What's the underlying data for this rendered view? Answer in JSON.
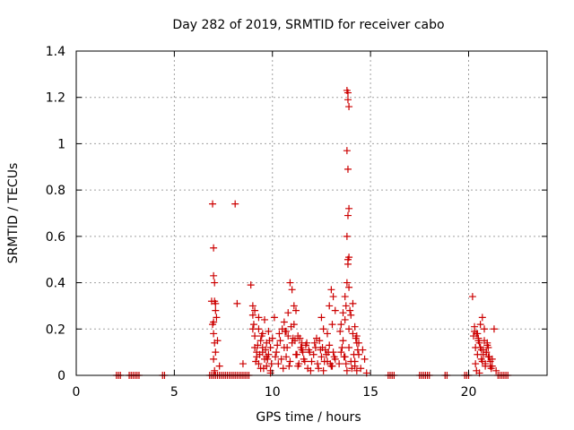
{
  "chart_data": {
    "type": "scatter",
    "title": "Day 282 of 2019, SRMTID for receiver cabo",
    "xlabel": "GPS time / hours",
    "ylabel": "SRMTID / TECUs",
    "xlim": [
      0,
      24
    ],
    "ylim": [
      0,
      1.4
    ],
    "xticks": [
      0,
      5,
      10,
      15,
      20
    ],
    "xtick_labels": [
      "0",
      "5",
      "10",
      "15",
      "20"
    ],
    "yticks": [
      0,
      0.2,
      0.4,
      0.6,
      0.8,
      1.0,
      1.2,
      1.4
    ],
    "ytick_labels": [
      "0",
      "0.2",
      "0.4",
      "0.6",
      "0.8",
      "1",
      "1.2",
      "1.4"
    ],
    "grid": true,
    "marker": "plus",
    "color": "#cc0000",
    "series": [
      {
        "name": "SRMTID",
        "x": [
          2.05,
          2.15,
          2.25,
          2.7,
          2.8,
          2.9,
          3.0,
          3.1,
          3.2,
          4.4,
          4.5,
          6.8,
          6.9,
          7.0,
          7.1,
          7.2,
          7.3,
          7.4,
          7.5,
          7.6,
          7.7,
          7.8,
          7.9,
          8.0,
          8.1,
          8.2,
          8.3,
          8.4,
          8.5,
          8.6,
          8.7,
          8.8,
          6.95,
          7.0,
          7.0,
          7.05,
          7.05,
          7.1,
          7.1,
          7.15,
          6.95,
          7.0,
          7.05,
          7.1,
          7.2,
          7.3,
          7.0,
          7.05,
          6.9,
          7.0,
          8.1,
          8.2,
          8.5,
          8.9,
          9.0,
          9.0,
          9.0,
          9.1,
          9.1,
          9.2,
          9.2,
          9.3,
          9.3,
          9.4,
          9.4,
          9.5,
          9.5,
          9.6,
          9.6,
          9.7,
          9.7,
          9.8,
          9.8,
          9.9,
          9.9,
          10.0,
          9.05,
          9.15,
          9.25,
          9.35,
          9.45,
          9.55,
          9.65,
          9.75,
          9.85,
          9.95,
          9.1,
          9.3,
          9.5,
          9.7,
          9.9,
          10.1,
          10.2,
          10.3,
          10.4,
          10.5,
          10.6,
          10.7,
          10.8,
          10.9,
          11.0,
          11.1,
          11.2,
          11.3,
          11.4,
          11.5,
          11.6,
          11.7,
          11.8,
          11.9,
          12.0,
          10.15,
          10.35,
          10.55,
          10.75,
          10.95,
          11.15,
          11.35,
          11.55,
          11.75,
          11.95,
          10.25,
          10.45,
          10.65,
          10.85,
          11.05,
          11.25,
          11.45,
          11.65,
          11.85,
          10.9,
          11.0,
          11.1,
          11.2,
          10.6,
          10.7,
          10.8,
          11.3,
          11.5,
          12.1,
          12.2,
          12.3,
          12.4,
          12.5,
          12.6,
          12.7,
          12.8,
          12.9,
          13.0,
          13.1,
          13.2,
          12.15,
          12.35,
          12.55,
          12.75,
          12.95,
          13.15,
          12.25,
          12.45,
          12.65,
          12.85,
          13.05,
          12.5,
          12.6,
          12.9,
          13.0,
          13.1,
          13.2,
          12.8,
          13.05,
          13.4,
          13.5,
          13.6,
          13.7,
          13.8,
          13.9,
          14.0,
          14.1,
          14.2,
          14.3,
          14.4,
          14.5,
          14.6,
          14.7,
          14.8,
          13.8,
          13.85,
          13.85,
          13.9,
          13.8,
          13.85,
          13.9,
          13.85,
          13.8,
          13.9,
          13.85,
          13.85,
          13.8,
          13.9,
          13.75,
          13.95,
          13.5,
          13.6,
          13.7,
          13.9,
          14.0,
          14.1,
          14.2,
          14.3,
          14.4,
          13.55,
          13.65,
          13.75,
          14.05,
          14.15,
          14.25,
          14.35,
          13.45,
          13.7,
          14.2,
          14.3,
          15.9,
          16.0,
          16.1,
          16.2,
          17.5,
          17.6,
          17.7,
          17.8,
          17.9,
          18.0,
          18.8,
          18.9,
          19.8,
          19.9,
          20.0,
          20.2,
          20.3,
          20.4,
          20.5,
          20.6,
          20.7,
          20.8,
          20.9,
          21.0,
          21.1,
          21.2,
          21.3,
          21.4,
          21.5,
          21.6,
          21.7,
          21.8,
          21.9,
          22.0,
          20.25,
          20.35,
          20.45,
          20.55,
          20.65,
          20.75,
          20.85,
          20.95,
          21.05,
          21.15,
          20.3,
          20.5,
          20.7,
          20.9,
          21.1,
          20.4,
          20.6,
          20.8,
          21.0,
          21.2,
          20.35,
          20.55,
          20.75,
          20.95,
          20.45,
          20.65,
          20.85,
          21.05
        ],
        "y": [
          0,
          0,
          0,
          0,
          0,
          0,
          0,
          0,
          0,
          0,
          0,
          0,
          0,
          0,
          0,
          0,
          0,
          0,
          0,
          0,
          0,
          0,
          0,
          0,
          0,
          0,
          0,
          0,
          0,
          0,
          0,
          0,
          0.74,
          0.55,
          0.43,
          0.4,
          0.32,
          0.31,
          0.28,
          0.25,
          0.22,
          0.18,
          0.14,
          0.1,
          0.15,
          0.04,
          0.07,
          0.02,
          0.32,
          0.23,
          0.74,
          0.31,
          0.05,
          0.39,
          0.3,
          0.26,
          0.2,
          0.17,
          0.12,
          0.1,
          0.08,
          0.25,
          0.05,
          0.15,
          0.03,
          0.18,
          0.1,
          0.24,
          0.07,
          0.14,
          0.04,
          0.19,
          0.09,
          0.12,
          0.02,
          0.16,
          0.22,
          0.06,
          0.13,
          0.09,
          0.17,
          0.03,
          0.11,
          0.07,
          0.15,
          0.05,
          0.28,
          0.2,
          0.12,
          0.08,
          0.01,
          0.25,
          0.1,
          0.05,
          0.15,
          0.2,
          0.12,
          0.08,
          0.17,
          0.06,
          0.14,
          0.22,
          0.09,
          0.04,
          0.16,
          0.11,
          0.07,
          0.13,
          0.03,
          0.1,
          0.06,
          0.08,
          0.18,
          0.03,
          0.12,
          0.21,
          0.15,
          0.05,
          0.1,
          0.14,
          0.02,
          0.13,
          0.07,
          0.19,
          0.04,
          0.16,
          0.09,
          0.12,
          0.06,
          0.11,
          0.4,
          0.37,
          0.3,
          0.28,
          0.23,
          0.19,
          0.27,
          0.17,
          0.14,
          0.09,
          0.12,
          0.05,
          0.15,
          0.08,
          0.02,
          0.11,
          0.06,
          0.13,
          0.04,
          0.1,
          0.07,
          0.14,
          0.03,
          0.12,
          0.09,
          0.05,
          0.08,
          0.16,
          0.11,
          0.06,
          0.1,
          0.04,
          0.25,
          0.2,
          0.3,
          0.37,
          0.34,
          0.28,
          0.18,
          0.22,
          0.05,
          0.1,
          0.15,
          0.08,
          0.02,
          0.12,
          0.06,
          0.18,
          0.04,
          0.14,
          0.09,
          0.03,
          0.11,
          0.07,
          0.01,
          1.23,
          1.22,
          1.19,
          1.16,
          0.97,
          0.89,
          0.72,
          0.69,
          0.6,
          0.51,
          0.5,
          0.48,
          0.4,
          0.38,
          0.3,
          0.28,
          0.22,
          0.27,
          0.34,
          0.2,
          0.26,
          0.31,
          0.21,
          0.17,
          0.14,
          0.12,
          0.08,
          0.05,
          0.03,
          0.09,
          0.16,
          0.11,
          0.19,
          0.24,
          0.06,
          0.02,
          0,
          0,
          0,
          0,
          0,
          0,
          0,
          0,
          0,
          0,
          0,
          0,
          0,
          0,
          0,
          0.34,
          0.21,
          0.18,
          0.15,
          0.12,
          0.25,
          0.2,
          0.1,
          0.08,
          0.06,
          0.04,
          0.2,
          0.02,
          0,
          0,
          0,
          0,
          0,
          0,
          0.17,
          0.12,
          0.09,
          0.14,
          0.07,
          0.11,
          0.05,
          0.13,
          0.08,
          0.03,
          0.19,
          0.16,
          0.06,
          0.1,
          0.04,
          0.02,
          0.22,
          0.15,
          0.12,
          0.07,
          0.05,
          0.01,
          0.09,
          0.14,
          0.18,
          0.11,
          0.04,
          0.08
        ]
      }
    ]
  }
}
